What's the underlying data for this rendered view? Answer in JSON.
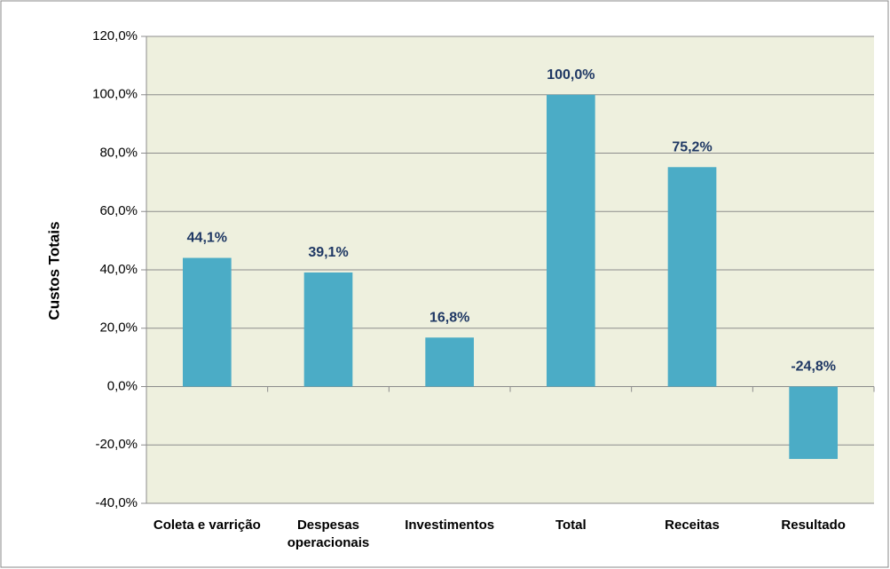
{
  "chart_data": {
    "type": "bar",
    "y_label": "Custos Totais",
    "categories": [
      "Coleta e varrição",
      "Despesas operacionais",
      "Investimentos",
      "Total",
      "Receitas",
      "Resultado"
    ],
    "values": [
      44.1,
      39.1,
      16.8,
      100.0,
      75.2,
      -24.8
    ],
    "value_labels": [
      "44,1%",
      "39,1%",
      "16,8%",
      "100,0%",
      "75,2%",
      "-24,8%"
    ],
    "color": "#4bacc6",
    "ylim": [
      -40,
      120
    ],
    "yticks": [
      {
        "value": -40,
        "label": "-40,0%"
      },
      {
        "value": -20,
        "label": "-20,0%"
      },
      {
        "value": 0,
        "label": "0,0%"
      },
      {
        "value": 20,
        "label": "20,0%"
      },
      {
        "value": 40,
        "label": "40,0%"
      },
      {
        "value": 60,
        "label": "60,0%"
      },
      {
        "value": 80,
        "label": "80,0%"
      },
      {
        "value": 100,
        "label": "100,0%"
      },
      {
        "value": 120,
        "label": "120,0%"
      }
    ],
    "grid": true
  }
}
